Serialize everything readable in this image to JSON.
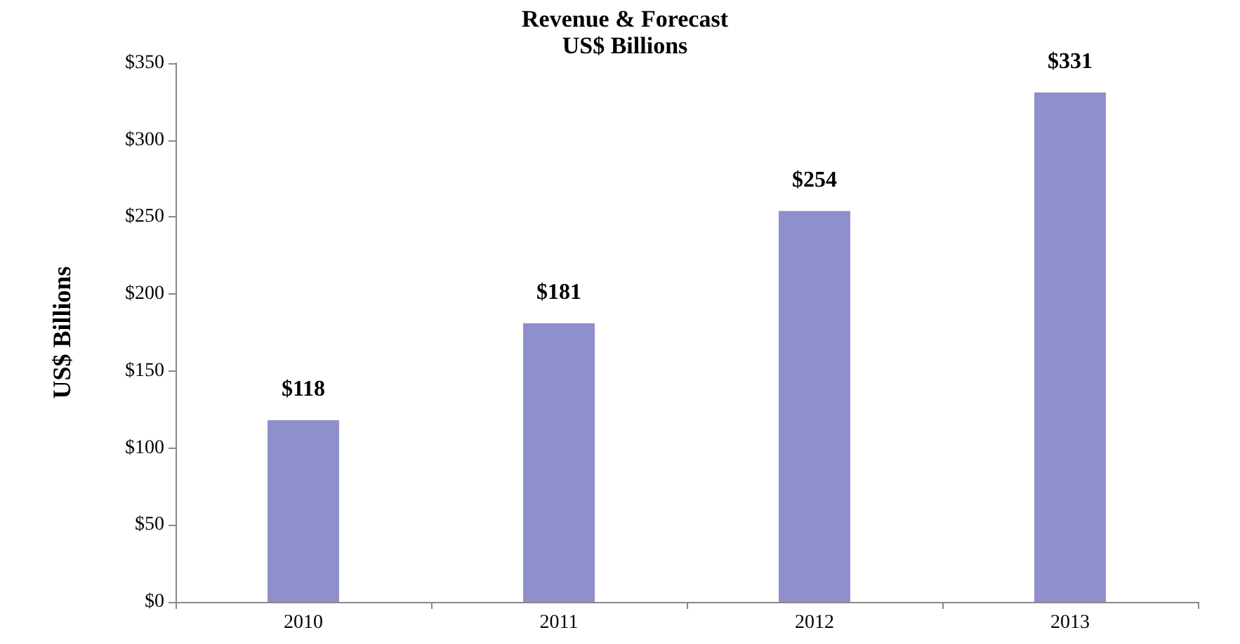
{
  "chart_data": {
    "type": "bar",
    "title": "Revenue & Forecast",
    "subtitle": "US$ Billions",
    "ylabel": "US$ Billions",
    "categories": [
      "2010",
      "2011",
      "2012",
      "2013"
    ],
    "values": [
      118,
      181,
      254,
      331
    ],
    "color": "#8e8fcb",
    "value_labels": [
      "$118",
      "$181",
      "$254",
      "$331"
    ],
    "ylim": [
      0,
      350
    ],
    "yticks": [
      {
        "value": 0,
        "label": "$0"
      },
      {
        "value": 50,
        "label": "$50"
      },
      {
        "value": 100,
        "label": "$100"
      },
      {
        "value": 150,
        "label": "$150"
      },
      {
        "value": 200,
        "label": "$200"
      },
      {
        "value": 250,
        "label": "$250"
      },
      {
        "value": 300,
        "label": "$300"
      },
      {
        "value": 350,
        "label": "$350"
      }
    ],
    "grid": false
  }
}
